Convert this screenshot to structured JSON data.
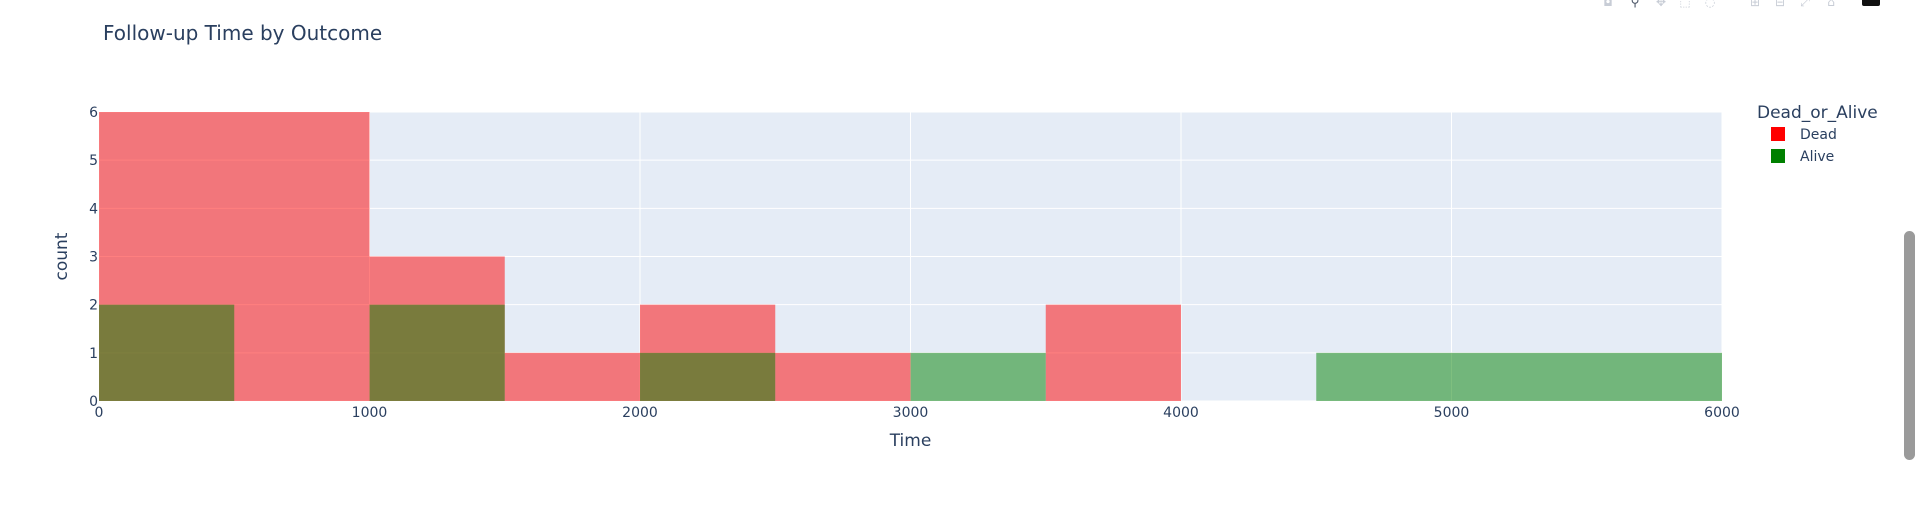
{
  "chart_data": {
    "type": "bar",
    "title": "Follow-up Time by Outcome",
    "xlabel": "Time",
    "ylabel": "count",
    "xlim": [
      0,
      6000
    ],
    "ylim": [
      0,
      6
    ],
    "bin_width": 500,
    "grid": true,
    "barmode": "overlay",
    "x_ticks": [
      "0",
      "1000",
      "2000",
      "3000",
      "4000",
      "5000",
      "6000"
    ],
    "y_ticks": [
      "0",
      "1",
      "2",
      "3",
      "4",
      "5",
      "6"
    ],
    "legend": {
      "title": "Dead_or_Alive",
      "placement": "right"
    },
    "series": [
      {
        "name": "Dead",
        "color": "#ff0000",
        "bins": [
          {
            "x0": 0,
            "x1": 1000,
            "count": 6
          },
          {
            "x0": 1000,
            "x1": 1500,
            "count": 3
          },
          {
            "x0": 1500,
            "x1": 2000,
            "count": 1
          },
          {
            "x0": 2000,
            "x1": 2500,
            "count": 2
          },
          {
            "x0": 2500,
            "x1": 3000,
            "count": 1
          },
          {
            "x0": 3500,
            "x1": 4000,
            "count": 2
          }
        ]
      },
      {
        "name": "Alive",
        "color": "#008000",
        "bins": [
          {
            "x0": 0,
            "x1": 500,
            "count": 2
          },
          {
            "x0": 1000,
            "x1": 1500,
            "count": 2
          },
          {
            "x0": 2000,
            "x1": 2500,
            "count": 1
          },
          {
            "x0": 3000,
            "x1": 3500,
            "count": 1
          },
          {
            "x0": 4500,
            "x1": 6000,
            "count": 1
          }
        ]
      }
    ]
  },
  "colors": {
    "plot_background": "#e5ecf6",
    "text": "#2a3f5f",
    "grid": "#ffffff"
  },
  "modebar": {
    "icons": [
      "camera-icon",
      "zoom-icon",
      "pan-icon",
      "box-select-icon",
      "lasso-icon",
      "zoom-in-icon",
      "zoom-out-icon",
      "autoscale-icon",
      "reset-axes-icon",
      "plotly-logo-icon"
    ]
  }
}
